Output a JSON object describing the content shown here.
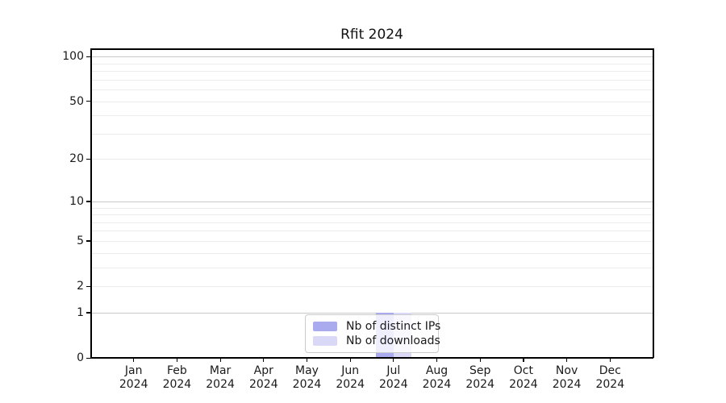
{
  "chart_data": {
    "type": "bar",
    "title": "Rfit 2024",
    "categories": [
      "Jan 2024",
      "Feb 2024",
      "Mar 2024",
      "Apr 2024",
      "May 2024",
      "Jun 2024",
      "Jul 2024",
      "Aug 2024",
      "Sep 2024",
      "Oct 2024",
      "Nov 2024",
      "Dec 2024"
    ],
    "series": [
      {
        "name": "Nb of distinct IPs",
        "color": "#aaaaee",
        "values": [
          0,
          0,
          0,
          0,
          0,
          0,
          1,
          0,
          0,
          0,
          0,
          0
        ]
      },
      {
        "name": "Nb of downloads",
        "color": "#d9d9f7",
        "values": [
          0,
          0,
          0,
          0,
          0,
          0,
          1,
          0,
          0,
          0,
          0,
          0
        ]
      }
    ],
    "xlabel": "",
    "ylabel": "",
    "yscale": "log1p",
    "yticks": [
      0,
      1,
      2,
      5,
      10,
      20,
      50,
      100
    ],
    "minor_gridline_values": [
      2,
      3,
      4,
      5,
      6,
      7,
      8,
      9,
      20,
      30,
      40,
      50,
      60,
      70,
      80,
      90
    ],
    "major_gridline_values": [
      1,
      10,
      100
    ],
    "ylim": [
      0,
      113
    ],
    "grid": true,
    "legend_position": "lower center",
    "grid_major_color": "#c8c8c8",
    "grid_minor_color": "#ececec",
    "spine_color": "#000000",
    "text_color": "#1a1a1a"
  }
}
